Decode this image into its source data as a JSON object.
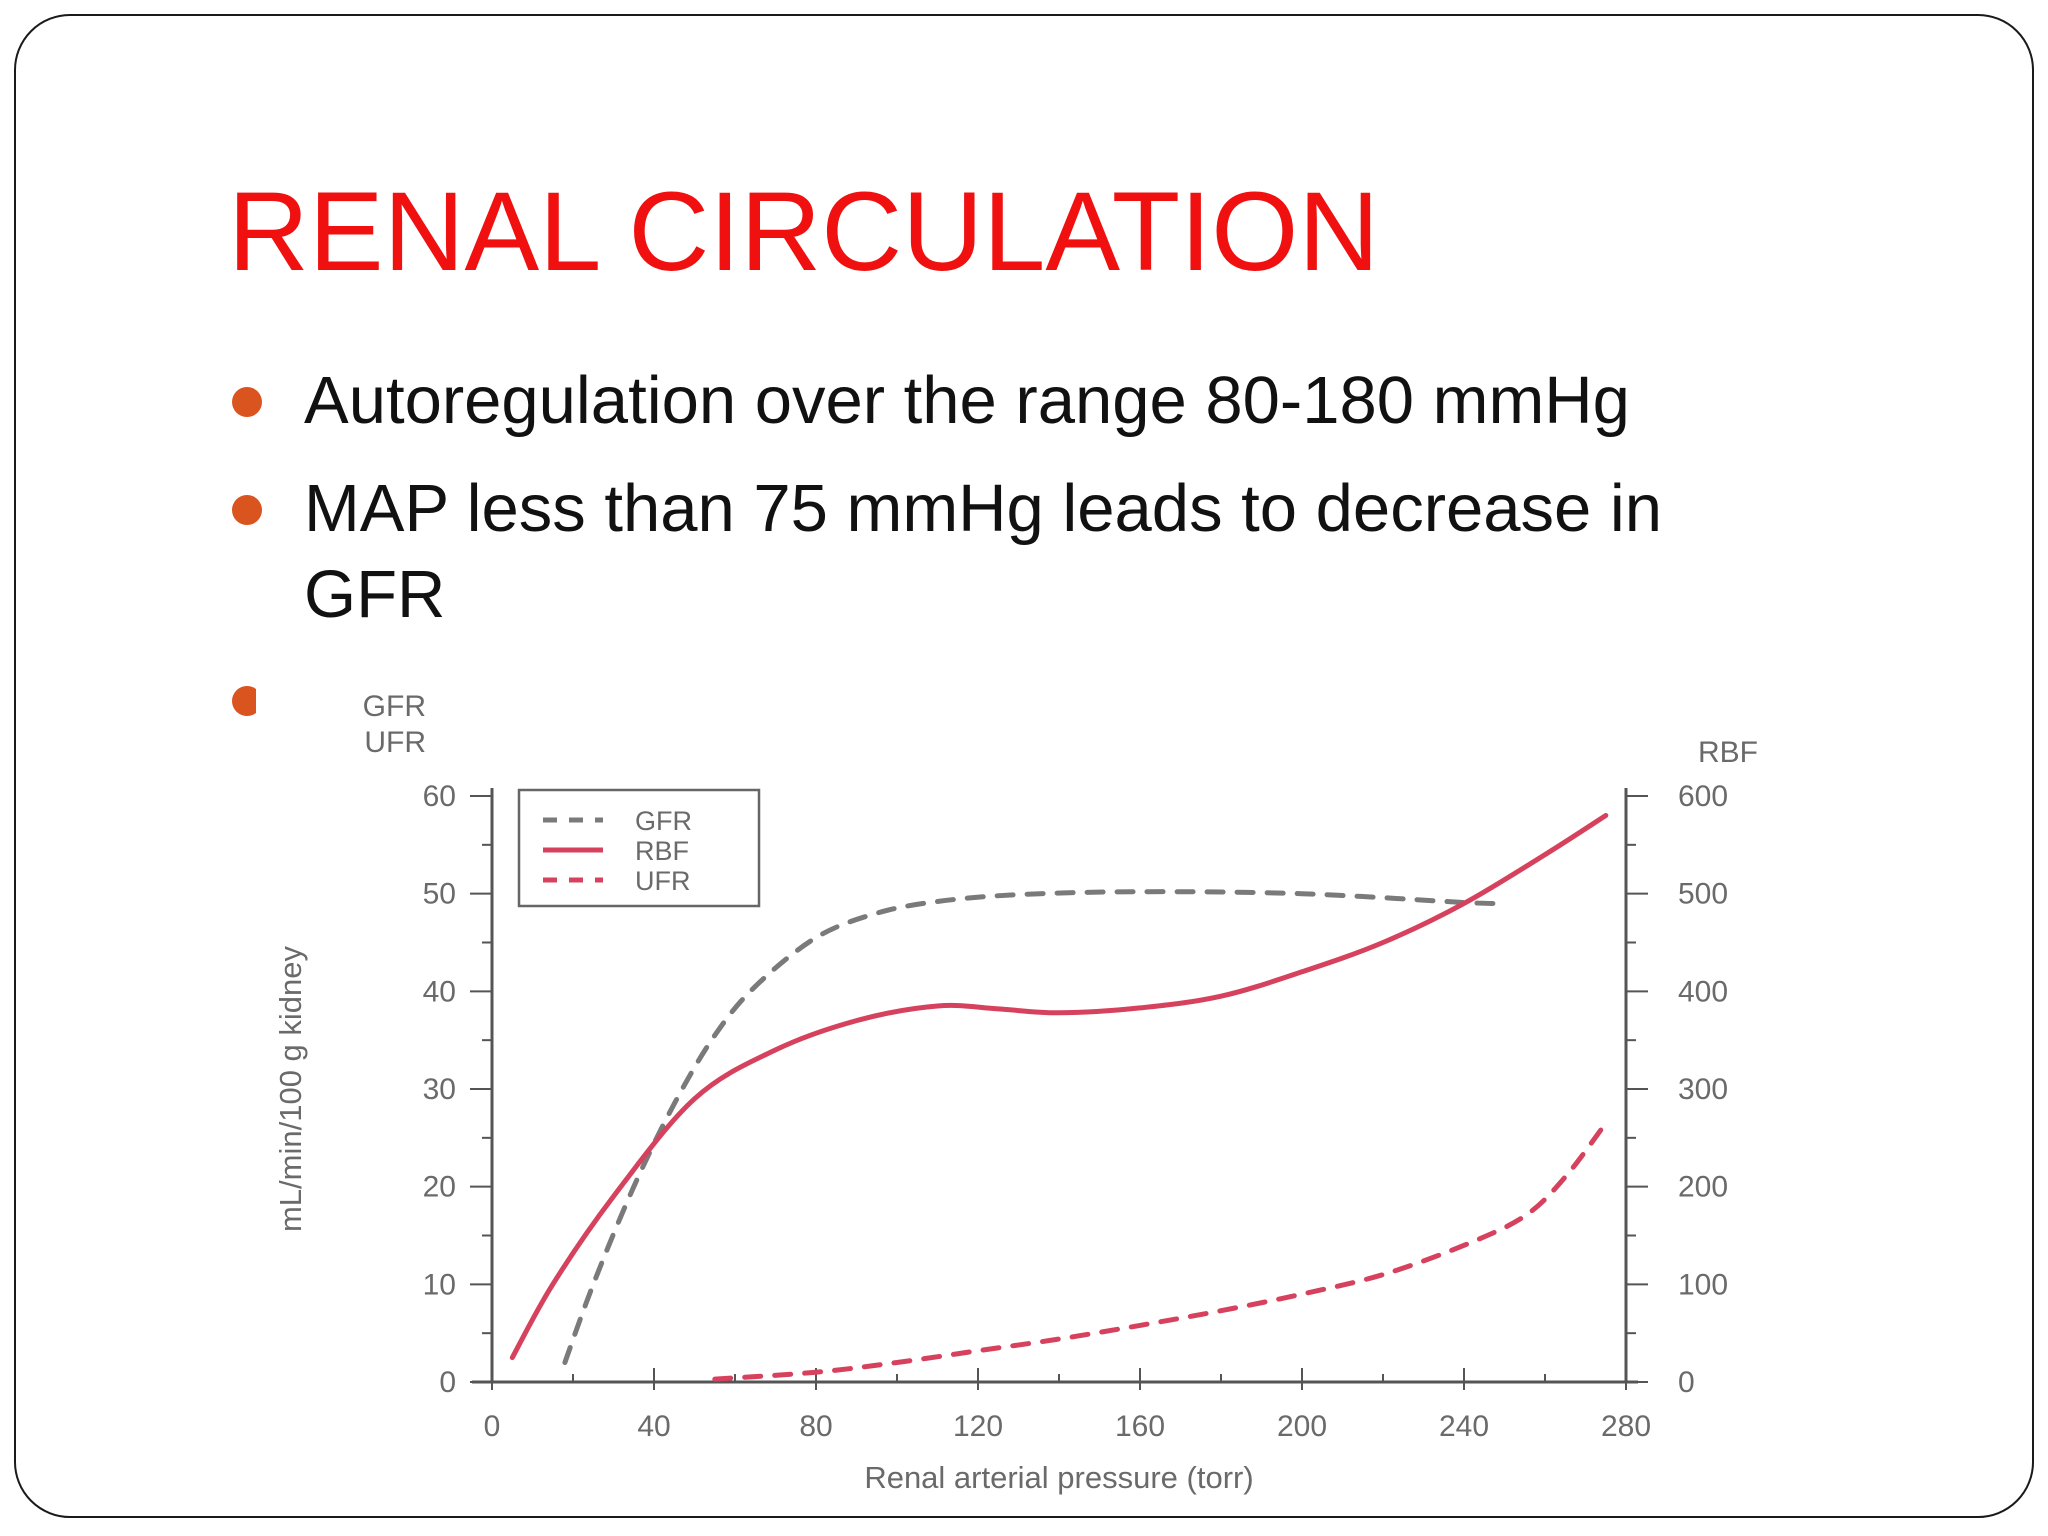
{
  "slide": {
    "title": "RENAL CIRCULATION",
    "bullets": [
      {
        "line1": "Autoregulation over the range 80-180 mmHg",
        "line2": ""
      },
      {
        "line1": "MAP less than 75 mmHg leads to decrease in",
        "line2": "GFR"
      },
      {
        "line1": "",
        "line2": ""
      }
    ],
    "colors": {
      "title": "#f01010",
      "bullet": "#d9541e",
      "rbf": "#d6425e",
      "gfr": "#7a7a7a"
    }
  },
  "chart_data": {
    "type": "line",
    "xlabel": "Renal arterial pressure (torr)",
    "ylabel": "mL/min/100 g kidney",
    "left_axis_title": [
      "GFR",
      "UFR"
    ],
    "right_axis_title": "RBF",
    "xlim": [
      0,
      280
    ],
    "ylim": [
      0,
      60
    ],
    "y2lim": [
      0,
      600
    ],
    "x_ticks": [
      0,
      40,
      80,
      120,
      160,
      200,
      240,
      280
    ],
    "y_ticks": [
      0,
      10,
      20,
      30,
      40,
      50,
      60
    ],
    "y2_ticks": [
      0,
      100,
      200,
      300,
      400,
      500,
      600
    ],
    "legend": {
      "placement": "top-left",
      "entries": [
        {
          "name": "GFR",
          "style": "dashed",
          "color": "#7a7a7a"
        },
        {
          "name": "RBF",
          "style": "solid",
          "color": "#d6425e"
        },
        {
          "name": "UFR",
          "style": "dashed",
          "color": "#d6425e"
        }
      ]
    },
    "grid": false,
    "series": [
      {
        "name": "GFR",
        "axis": "left",
        "style": "dashed",
        "color": "#7a7a7a",
        "x": [
          18,
          25,
          35,
          45,
          55,
          65,
          80,
          95,
          110,
          130,
          160,
          200,
          240,
          250
        ],
        "y": [
          2,
          10,
          20,
          28.5,
          35.5,
          40.5,
          45.5,
          48,
          49.2,
          49.9,
          50.2,
          50,
          49.1,
          49
        ]
      },
      {
        "name": "RBF",
        "axis": "right",
        "style": "solid",
        "color": "#d6425e",
        "x": [
          5,
          15,
          30,
          50,
          70,
          90,
          110,
          125,
          140,
          160,
          180,
          200,
          220,
          240,
          260,
          275
        ],
        "y": [
          25,
          100,
          190,
          290,
          340,
          370,
          385,
          382,
          378,
          383,
          395,
          420,
          450,
          490,
          540,
          580
        ]
      },
      {
        "name": "UFR",
        "axis": "left",
        "style": "dashed",
        "color": "#d6425e",
        "x": [
          55,
          80,
          100,
          120,
          140,
          160,
          180,
          200,
          220,
          240,
          255,
          265,
          275
        ],
        "y": [
          0.3,
          1,
          2,
          3.2,
          4.4,
          5.8,
          7.3,
          9,
          11,
          14,
          17,
          21,
          26.5
        ]
      }
    ]
  }
}
